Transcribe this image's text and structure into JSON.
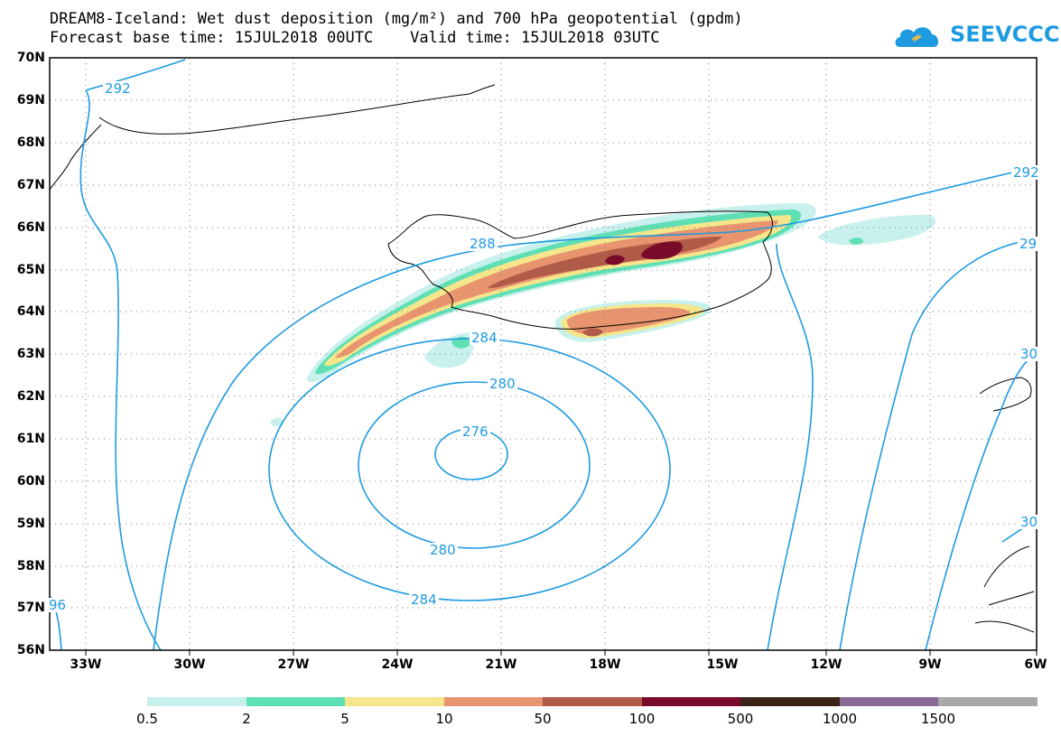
{
  "title_line1": "DREAM8-Iceland: Wet dust deposition (mg/m²) and 700 hPa geopotential (gpdm)",
  "title_line2": "Forecast base time: 15JUL2018 00UTC    Valid time: 15JUL2018 03UTC",
  "logo_text": "SEEVCCC",
  "lat_labels": [
    "70N",
    "69N",
    "68N",
    "67N",
    "66N",
    "65N",
    "64N",
    "63N",
    "62N",
    "61N",
    "60N",
    "59N",
    "58N",
    "57N",
    "56N"
  ],
  "lon_labels": [
    "33W",
    "30W",
    "27W",
    "24W",
    "21W",
    "18W",
    "15W",
    "12W",
    "9W",
    "6W"
  ],
  "contour_labels": [
    "292",
    "288",
    "284",
    "280",
    "276",
    "280",
    "284",
    "292",
    "29",
    "30",
    "30",
    "96"
  ],
  "legend": {
    "bounds": [
      "0.5",
      "2",
      "5",
      "10",
      "50",
      "100",
      "500",
      "1000",
      "1500"
    ],
    "colors": [
      "#c8f0ec",
      "#5ee0b4",
      "#f5e68c",
      "#e8946e",
      "#b05a48",
      "#7a0a2a",
      "#3a2418",
      "#8a6a96",
      "#a8a8a8"
    ]
  },
  "colors": {
    "contour": "#1e9be0",
    "coast": "#000000"
  }
}
